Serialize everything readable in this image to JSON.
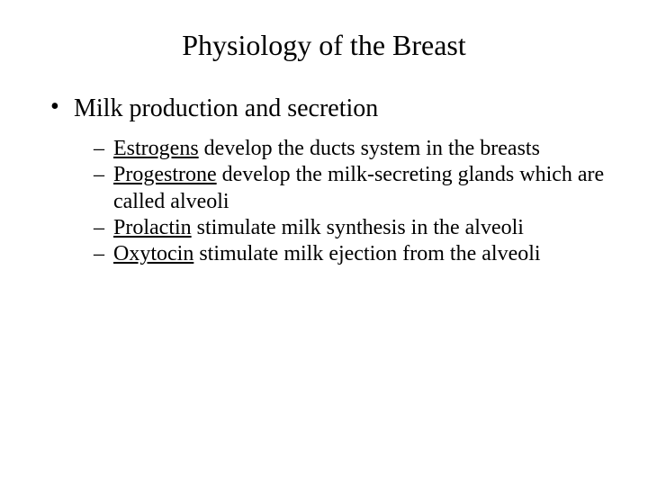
{
  "title": "Physiology of the Breast",
  "bullet1": "Milk production and secretion",
  "sub1_key": "Estrogens",
  "sub1_rest": " develop the ducts system in the breasts",
  "sub2_key": "Progestrone",
  "sub2_rest": " develop the milk-secreting glands which are called alveoli",
  "sub3_key": "Prolactin",
  "sub3_rest": " stimulate milk synthesis in the alveoli",
  "sub4_key": "Oxytocin",
  "sub4_rest": " stimulate milk ejection from the alveoli",
  "colors": {
    "background": "#ffffff",
    "text": "#000000"
  },
  "fonts": {
    "family": "Times New Roman",
    "title_size_pt": 32,
    "level1_size_pt": 28,
    "level2_size_pt": 24
  }
}
